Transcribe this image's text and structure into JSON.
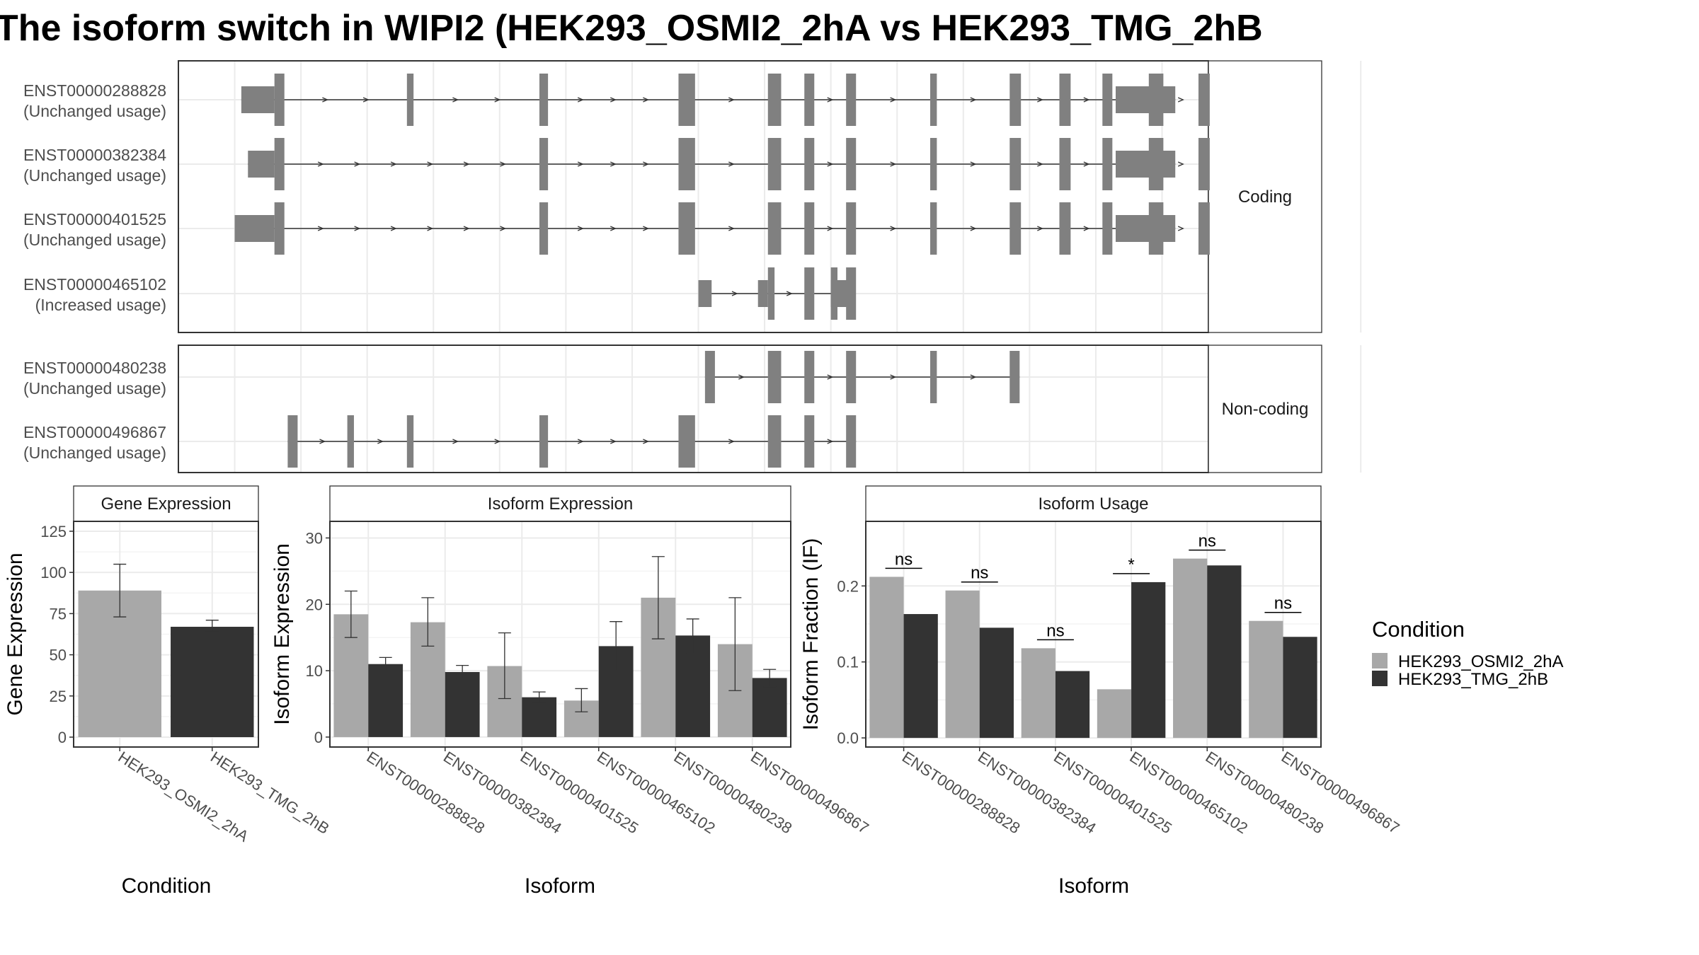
{
  "title": "The isoform switch in WIPI2 (HEK293_OSMI2_2hA vs HEK293_TMG_2hB",
  "colors": {
    "cond_a": "#a8a8a8",
    "cond_b": "#333333",
    "exon": "#808080",
    "grid": "#ebebeb",
    "strip": "#ffffff",
    "panel_border": "#333333"
  },
  "legend": {
    "title": "Condition",
    "items": [
      "HEK293_OSMI2_2hA",
      "HEK293_TMG_2hB"
    ]
  },
  "chart_data": [
    {
      "type": "gene-structure",
      "x_breaks": [
        0,
        1,
        2,
        3,
        4,
        5,
        6,
        7,
        8,
        9,
        10,
        11,
        12,
        13,
        14,
        15,
        16,
        17
      ],
      "groups": [
        {
          "label": "Coding",
          "transcripts": [
            {
              "id": "ENST00000288828",
              "status": "(Unchanged usage)",
              "utr": [
                [
                  0.1,
                  0.6
                ],
                [
                  13.3,
                  14.2
                ]
              ],
              "cds": [
                [
                  0.6,
                  0.75
                ],
                [
                  2.6,
                  2.7
                ],
                [
                  4.6,
                  4.73
                ],
                [
                  6.7,
                  6.95
                ],
                [
                  8.05,
                  8.25
                ],
                [
                  8.6,
                  8.75
                ],
                [
                  9.23,
                  9.38
                ],
                [
                  10.5,
                  10.6
                ],
                [
                  11.7,
                  11.87
                ],
                [
                  12.45,
                  12.62
                ],
                [
                  13.1,
                  13.25
                ],
                [
                  13.8,
                  14.02
                ],
                [
                  14.55,
                  14.72
                ]
              ],
              "span": [
                0.1,
                14.2
              ]
            },
            {
              "id": "ENST00000382384",
              "status": "(Unchanged usage)",
              "utr": [
                [
                  0.2,
                  0.6
                ],
                [
                  13.3,
                  14.2
                ]
              ],
              "cds": [
                [
                  0.6,
                  0.75
                ],
                [
                  4.6,
                  4.73
                ],
                [
                  6.7,
                  6.95
                ],
                [
                  8.05,
                  8.25
                ],
                [
                  8.6,
                  8.75
                ],
                [
                  9.23,
                  9.38
                ],
                [
                  10.5,
                  10.6
                ],
                [
                  11.7,
                  11.87
                ],
                [
                  12.45,
                  12.62
                ],
                [
                  13.1,
                  13.25
                ],
                [
                  13.8,
                  14.02
                ],
                [
                  14.55,
                  14.72
                ]
              ],
              "span": [
                0.2,
                14.2
              ]
            },
            {
              "id": "ENST00000401525",
              "status": "(Unchanged usage)",
              "utr": [
                [
                  0.0,
                  0.6
                ],
                [
                  13.3,
                  14.2
                ]
              ],
              "cds": [
                [
                  0.6,
                  0.75
                ],
                [
                  4.6,
                  4.73
                ],
                [
                  6.7,
                  6.95
                ],
                [
                  8.05,
                  8.25
                ],
                [
                  8.6,
                  8.75
                ],
                [
                  9.23,
                  9.38
                ],
                [
                  10.5,
                  10.6
                ],
                [
                  11.7,
                  11.87
                ],
                [
                  12.45,
                  12.62
                ],
                [
                  13.1,
                  13.25
                ],
                [
                  13.8,
                  14.02
                ],
                [
                  14.55,
                  14.72
                ]
              ],
              "span": [
                0.0,
                14.2
              ]
            },
            {
              "id": "ENST00000465102",
              "status": "(Increased usage)",
              "utr": [
                [
                  7.0,
                  7.2
                ],
                [
                  7.9,
                  8.05
                ],
                [
                  9.0,
                  9.17
                ],
                [
                  9.1,
                  9.35
                ]
              ],
              "cds": [
                [
                  8.05,
                  8.15
                ],
                [
                  8.6,
                  8.75
                ],
                [
                  9.23,
                  9.38
                ],
                [
                  9.0,
                  9.1
                ]
              ],
              "span": [
                7.0,
                9.35
              ]
            }
          ]
        },
        {
          "label": "Non-coding",
          "transcripts": [
            {
              "id": "ENST00000480238",
              "status": "(Unchanged usage)",
              "exons": [
                [
                  7.1,
                  7.25
                ],
                [
                  8.05,
                  8.25
                ],
                [
                  8.6,
                  8.75
                ],
                [
                  9.23,
                  9.38
                ],
                [
                  10.5,
                  10.6
                ],
                [
                  11.7,
                  11.85
                ]
              ],
              "span": [
                7.1,
                11.85
              ]
            },
            {
              "id": "ENST00000496867",
              "status": "(Unchanged usage)",
              "exons": [
                [
                  0.8,
                  0.95
                ],
                [
                  1.7,
                  1.8
                ],
                [
                  2.6,
                  2.7
                ],
                [
                  4.6,
                  4.73
                ],
                [
                  6.7,
                  6.95
                ],
                [
                  8.05,
                  8.25
                ],
                [
                  8.6,
                  8.75
                ],
                [
                  9.23,
                  9.38
                ]
              ],
              "span": [
                0.8,
                9.38
              ]
            }
          ]
        }
      ]
    },
    {
      "type": "bar",
      "title": "Gene Expression",
      "xlabel": "Condition",
      "ylabel": "Gene Expression",
      "categories": [
        "HEK293_OSMI2_2hA",
        "HEK293_TMG_2hB"
      ],
      "values": [
        89,
        67
      ],
      "error_low": [
        73,
        64
      ],
      "error_high": [
        105,
        71
      ],
      "ylim": [
        -6,
        131
      ],
      "yticks": [
        0,
        25,
        50,
        75,
        100,
        125
      ]
    },
    {
      "type": "bar",
      "title": "Isoform Expression",
      "xlabel": "Isoform",
      "ylabel": "Isoform Expression",
      "categories": [
        "ENST00000288828",
        "ENST00000382384",
        "ENST00000401525",
        "ENST00000465102",
        "ENST00000480238",
        "ENST00000496867"
      ],
      "series": [
        {
          "name": "HEK293_OSMI2_2hA",
          "values": [
            18.5,
            17.3,
            10.7,
            5.5,
            21.0,
            14.0
          ],
          "error_low": [
            15.0,
            13.7,
            5.8,
            3.8,
            14.8,
            7.0
          ],
          "error_high": [
            22.0,
            21.0,
            15.7,
            7.3,
            27.2,
            21.0
          ]
        },
        {
          "name": "HEK293_TMG_2hB",
          "values": [
            11.0,
            9.8,
            6.0,
            13.7,
            15.3,
            8.9
          ],
          "error_low": [
            10.0,
            8.8,
            5.2,
            10.0,
            12.6,
            7.6
          ],
          "error_high": [
            12.0,
            10.8,
            6.8,
            17.4,
            17.8,
            10.2
          ]
        }
      ],
      "ylim": [
        -1.5,
        32.5
      ],
      "yticks": [
        0,
        10,
        20,
        30
      ]
    },
    {
      "type": "bar",
      "title": "Isoform Usage",
      "xlabel": "Isoform",
      "ylabel": "Isoform Fraction (IF)",
      "categories": [
        "ENST00000288828",
        "ENST00000382384",
        "ENST00000401525",
        "ENST00000465102",
        "ENST00000480238",
        "ENST00000496867"
      ],
      "series": [
        {
          "name": "HEK293_OSMI2_2hA",
          "values": [
            0.212,
            0.194,
            0.118,
            0.064,
            0.236,
            0.154
          ]
        },
        {
          "name": "HEK293_TMG_2hB",
          "values": [
            0.163,
            0.145,
            0.088,
            0.205,
            0.227,
            0.133
          ]
        }
      ],
      "significance": [
        "ns",
        "ns",
        "ns",
        "*",
        "ns",
        "ns"
      ],
      "ylim": [
        -0.012,
        0.285
      ],
      "yticks": [
        0.0,
        0.1,
        0.2
      ],
      "ytick_labels": [
        "0.0",
        "0.1",
        "0.2"
      ]
    }
  ]
}
